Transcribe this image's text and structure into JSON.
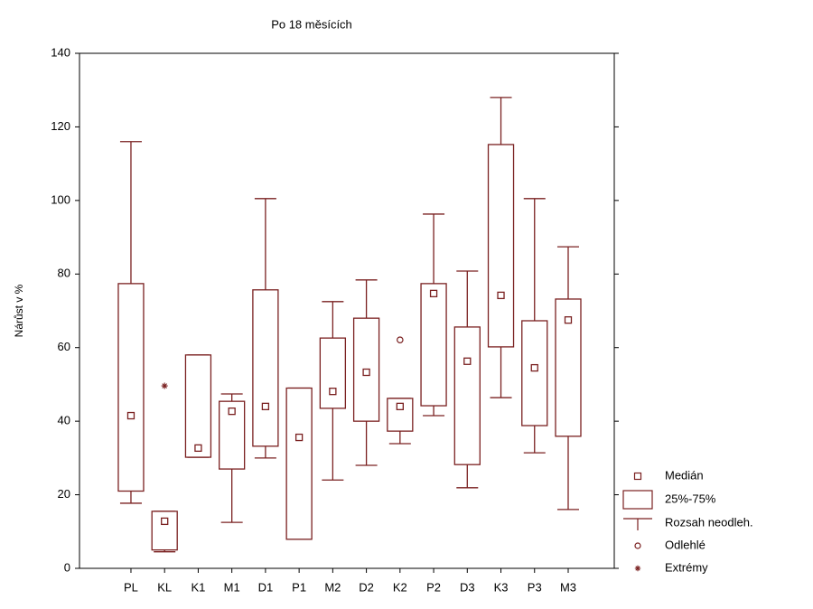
{
  "chart_data": {
    "type": "box",
    "title": "Po 18 měsících",
    "y_label": "Nárůst v %",
    "categories": [
      "PL",
      "KL",
      "K1",
      "M1",
      "D1",
      "P1",
      "M2",
      "D2",
      "K2",
      "P2",
      "D3",
      "K3",
      "P3",
      "M3"
    ],
    "min": [
      17.7,
      4.5,
      30.2,
      12.5,
      30,
      7.9,
      24,
      28,
      33.9,
      41.5,
      21.9,
      46.4,
      31.4,
      16
    ],
    "q1": [
      21,
      5,
      30.2,
      27,
      33.2,
      7.9,
      43.5,
      40,
      37.3,
      44.2,
      28.2,
      60.2,
      38.8,
      35.9
    ],
    "median": [
      41.5,
      12.8,
      32.7,
      42.7,
      44,
      35.6,
      48.1,
      53.3,
      44,
      74.7,
      56.3,
      74.2,
      54.5,
      67.5
    ],
    "q3": [
      77.4,
      15.5,
      58,
      45.4,
      75.7,
      49,
      62.6,
      68,
      46.2,
      77.4,
      65.6,
      115.2,
      67.3,
      73.2
    ],
    "max": [
      116,
      15.5,
      58,
      47.4,
      100.5,
      49,
      72.5,
      78.4,
      46.2,
      96.3,
      80.8,
      128,
      100.5,
      87.4
    ],
    "outliers": [
      [],
      [],
      [],
      [],
      [],
      [],
      [],
      [],
      [
        62.1
      ],
      [],
      [],
      [],
      [],
      []
    ],
    "extremes": [
      [],
      [
        49.6
      ],
      [],
      [],
      [],
      [],
      [],
      [],
      [],
      [],
      [],
      [],
      [],
      []
    ],
    "color": "#7a2020",
    "ylim": [
      0,
      140
    ],
    "yticks": [
      0,
      20,
      40,
      60,
      80,
      100,
      120,
      140
    ],
    "legend": {
      "median": "Medián",
      "box": "25%-75%",
      "whisker": "Rozsah neodleh.",
      "outlier": "Odlehlé",
      "extreme": "Extrémy"
    },
    "legend_position": "lower right"
  }
}
